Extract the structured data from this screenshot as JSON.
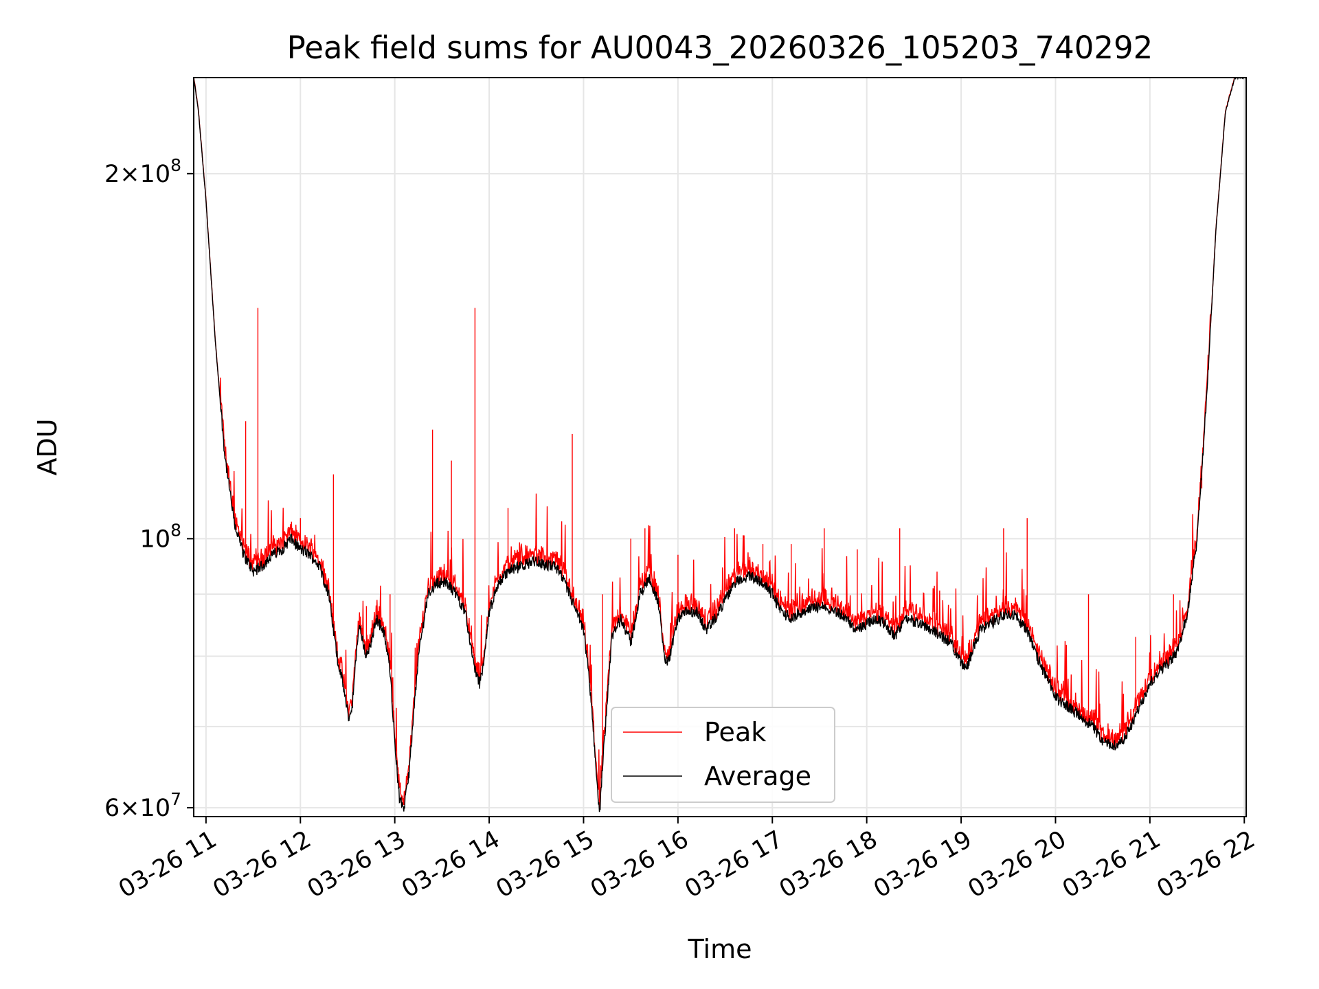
{
  "chart_data": {
    "type": "line",
    "title": "Peak field sums for AU0043_20260326_105203_740292",
    "xlabel": "Time",
    "ylabel": "ADU",
    "yscale": "log",
    "ylim": [
      59000000,
      240000000
    ],
    "xlim": [
      10.87,
      22.02
    ],
    "x_unit": "hour of day, 2026-03-26",
    "grid": true,
    "legend_position": "lower-center",
    "x_ticks": [
      {
        "value": 11,
        "label": "03-26 11"
      },
      {
        "value": 12,
        "label": "03-26 12"
      },
      {
        "value": 13,
        "label": "03-26 13"
      },
      {
        "value": 14,
        "label": "03-26 14"
      },
      {
        "value": 15,
        "label": "03-26 15"
      },
      {
        "value": 16,
        "label": "03-26 16"
      },
      {
        "value": 17,
        "label": "03-26 17"
      },
      {
        "value": 18,
        "label": "03-26 18"
      },
      {
        "value": 19,
        "label": "03-26 19"
      },
      {
        "value": 20,
        "label": "03-26 20"
      },
      {
        "value": 21,
        "label": "03-26 21"
      },
      {
        "value": 22,
        "label": "03-26 22"
      }
    ],
    "y_ticks": [
      {
        "value": 60000000,
        "mant": "6",
        "exp": "7"
      },
      {
        "value": 100000000,
        "mant": "",
        "exp": "8"
      },
      {
        "value": 200000000,
        "mant": "2",
        "exp": "8"
      }
    ],
    "y_minor_grid": [
      70000000,
      80000000,
      90000000
    ],
    "series": [
      {
        "name": "Peak",
        "color": "#ff0000",
        "role": "peak"
      },
      {
        "name": "Average",
        "color": "#000000",
        "role": "average"
      }
    ],
    "average_profile": [
      [
        10.87,
        240000000
      ],
      [
        10.92,
        225000000
      ],
      [
        11.0,
        190000000
      ],
      [
        11.1,
        145000000
      ],
      [
        11.2,
        117000000
      ],
      [
        11.3,
        103000000
      ],
      [
        11.4,
        97000000
      ],
      [
        11.5,
        94000000
      ],
      [
        11.6,
        95000000
      ],
      [
        11.7,
        97000000
      ],
      [
        11.8,
        98000000
      ],
      [
        11.9,
        100000000
      ],
      [
        12.0,
        98000000
      ],
      [
        12.1,
        97000000
      ],
      [
        12.2,
        95000000
      ],
      [
        12.3,
        90000000
      ],
      [
        12.35,
        84000000
      ],
      [
        12.4,
        79000000
      ],
      [
        12.45,
        76000000
      ],
      [
        12.5,
        72000000
      ],
      [
        12.52,
        71000000
      ],
      [
        12.55,
        73000000
      ],
      [
        12.62,
        85000000
      ],
      [
        12.7,
        80000000
      ],
      [
        12.75,
        82000000
      ],
      [
        12.8,
        86000000
      ],
      [
        12.88,
        84000000
      ],
      [
        12.95,
        78000000
      ],
      [
        13.0,
        68000000
      ],
      [
        13.05,
        61000000
      ],
      [
        13.1,
        60000000
      ],
      [
        13.15,
        64000000
      ],
      [
        13.25,
        80000000
      ],
      [
        13.35,
        90000000
      ],
      [
        13.45,
        92000000
      ],
      [
        13.55,
        92000000
      ],
      [
        13.65,
        90000000
      ],
      [
        13.75,
        87000000
      ],
      [
        13.82,
        80000000
      ],
      [
        13.87,
        77000000
      ],
      [
        13.9,
        76000000
      ],
      [
        13.95,
        80000000
      ],
      [
        14.0,
        87000000
      ],
      [
        14.1,
        92000000
      ],
      [
        14.2,
        94000000
      ],
      [
        14.35,
        95000000
      ],
      [
        14.5,
        96000000
      ],
      [
        14.6,
        95000000
      ],
      [
        14.7,
        95000000
      ],
      [
        14.8,
        92000000
      ],
      [
        14.9,
        88000000
      ],
      [
        15.0,
        84000000
      ],
      [
        15.05,
        78000000
      ],
      [
        15.1,
        70000000
      ],
      [
        15.15,
        62000000
      ],
      [
        15.17,
        59000000
      ],
      [
        15.2,
        65000000
      ],
      [
        15.3,
        83000000
      ],
      [
        15.4,
        86000000
      ],
      [
        15.5,
        82000000
      ],
      [
        15.6,
        90000000
      ],
      [
        15.7,
        93000000
      ],
      [
        15.8,
        88000000
      ],
      [
        15.85,
        80000000
      ],
      [
        15.9,
        79000000
      ],
      [
        16.0,
        86000000
      ],
      [
        16.1,
        87000000
      ],
      [
        16.2,
        87000000
      ],
      [
        16.3,
        84000000
      ],
      [
        16.4,
        86000000
      ],
      [
        16.5,
        89000000
      ],
      [
        16.6,
        92000000
      ],
      [
        16.7,
        93000000
      ],
      [
        16.8,
        93000000
      ],
      [
        16.9,
        92000000
      ],
      [
        17.0,
        90000000
      ],
      [
        17.1,
        87000000
      ],
      [
        17.2,
        86000000
      ],
      [
        17.3,
        87000000
      ],
      [
        17.5,
        88000000
      ],
      [
        17.7,
        87000000
      ],
      [
        17.9,
        84000000
      ],
      [
        18.0,
        85000000
      ],
      [
        18.1,
        86000000
      ],
      [
        18.2,
        85000000
      ],
      [
        18.3,
        83000000
      ],
      [
        18.4,
        86000000
      ],
      [
        18.6,
        85000000
      ],
      [
        18.9,
        82000000
      ],
      [
        19.0,
        79000000
      ],
      [
        19.05,
        78000000
      ],
      [
        19.1,
        80000000
      ],
      [
        19.2,
        84000000
      ],
      [
        19.4,
        86000000
      ],
      [
        19.5,
        87000000
      ],
      [
        19.6,
        86000000
      ],
      [
        19.7,
        84000000
      ],
      [
        19.8,
        80000000
      ],
      [
        19.9,
        77000000
      ],
      [
        20.0,
        74000000
      ],
      [
        20.1,
        73000000
      ],
      [
        20.2,
        72000000
      ],
      [
        20.3,
        71000000
      ],
      [
        20.4,
        70000000
      ],
      [
        20.5,
        68000000
      ],
      [
        20.6,
        67500000
      ],
      [
        20.7,
        68000000
      ],
      [
        20.8,
        70000000
      ],
      [
        20.9,
        73000000
      ],
      [
        21.0,
        76000000
      ],
      [
        21.1,
        78000000
      ],
      [
        21.2,
        79000000
      ],
      [
        21.3,
        81000000
      ],
      [
        21.4,
        87000000
      ],
      [
        21.5,
        100000000
      ],
      [
        21.6,
        130000000
      ],
      [
        21.7,
        180000000
      ],
      [
        21.8,
        225000000
      ],
      [
        21.9,
        240000000
      ],
      [
        22.02,
        240000000
      ]
    ],
    "peak_spikes": [
      [
        11.42,
        125000000
      ],
      [
        11.55,
        155000000
      ],
      [
        12.0,
        104000000
      ],
      [
        12.35,
        113000000
      ],
      [
        12.7,
        88000000
      ],
      [
        12.95,
        90000000
      ],
      [
        13.4,
        123000000
      ],
      [
        13.6,
        116000000
      ],
      [
        13.85,
        155000000
      ],
      [
        14.2,
        106000000
      ],
      [
        14.5,
        104000000
      ],
      [
        14.88,
        122000000
      ],
      [
        15.2,
        90000000
      ],
      [
        15.5,
        100000000
      ],
      [
        15.65,
        102000000
      ],
      [
        16.0,
        97000000
      ],
      [
        16.6,
        102000000
      ],
      [
        16.9,
        99000000
      ],
      [
        17.2,
        99000000
      ],
      [
        17.55,
        102000000
      ],
      [
        17.9,
        98000000
      ],
      [
        18.35,
        102000000
      ],
      [
        19.45,
        102000000
      ],
      [
        19.7,
        104000000
      ],
      [
        20.35,
        90000000
      ],
      [
        20.85,
        83000000
      ],
      [
        21.25,
        90000000
      ],
      [
        21.55,
        110000000
      ]
    ]
  }
}
